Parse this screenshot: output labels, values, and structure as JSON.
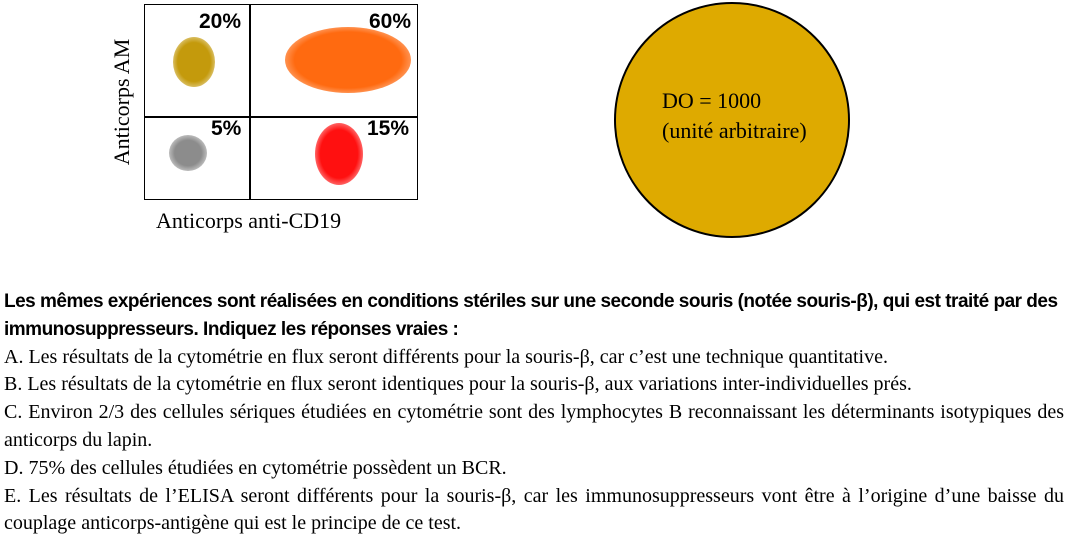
{
  "figure": {
    "quadrants": [
      {
        "id": "top-left",
        "percent": "20%",
        "color": "#c49a0c"
      },
      {
        "id": "top-right",
        "percent": "60%",
        "color": "#ff6a10"
      },
      {
        "id": "bottom-left",
        "percent": "5%",
        "color": "#8c8c8c"
      },
      {
        "id": "bottom-right",
        "percent": "15%",
        "color": "#ff1010"
      }
    ],
    "y_axis_label": "Anticorps AM",
    "x_axis_label": "Anticorps anti-CD19",
    "circle": {
      "line1": "DO = 1000",
      "line2": "(unité arbitraire)",
      "color": "#deaa00"
    }
  },
  "question": "Les mêmes expériences sont réalisées en conditions stériles sur une seconde souris (notée souris-β), qui est traité par des immunosuppresseurs. Indiquez les réponses vraies :",
  "options": [
    {
      "text": "A. Les résultats de la cytométrie en flux seront différents pour la souris-β, car c’est une technique quantitative."
    },
    {
      "text": "B. Les résultats de la cytométrie en flux seront identiques pour la souris-β, aux variations inter-individuelles prés."
    },
    {
      "text": "C. Environ 2/3 des cellules sériques étudiées en cytométrie sont des lymphocytes B reconnaissant les déterminants isotypiques des anticorps du lapin."
    },
    {
      "text": "D. 75% des cellules étudiées en cytométrie possèdent un BCR."
    },
    {
      "text": "E. Les résultats de l’ELISA seront différents pour la souris-β, car les immunosuppresseurs vont être à l’origine d’une baisse du couplage anticorps-antigène qui est le principe de ce test."
    }
  ]
}
